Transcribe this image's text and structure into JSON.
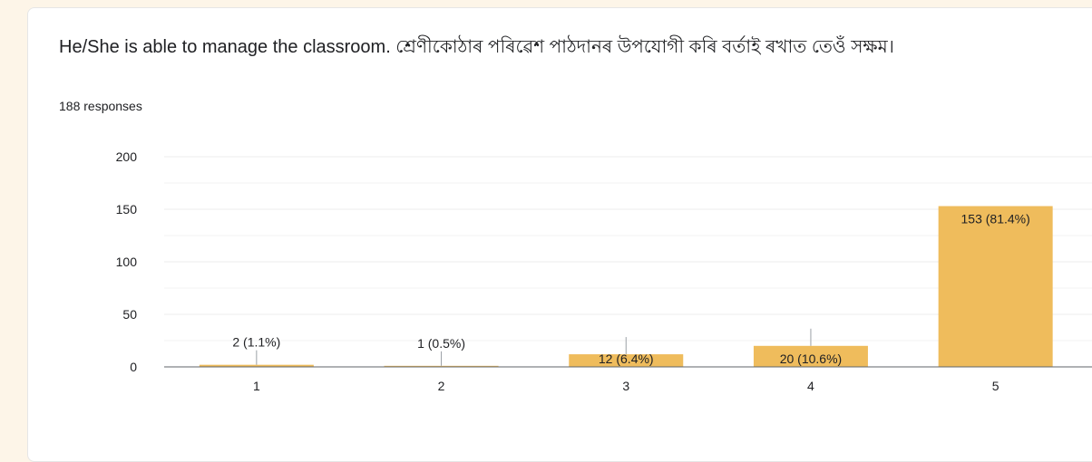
{
  "card": {
    "question_title": "He/She is able to manage the classroom. শ্ৰেণীকোঠাৰ পৰিৱেশ পাঠদানৰ উপযোগী কৰি বৰ্তাই ৰখাত তেওঁ সক্ষম।",
    "response_count": "188 responses"
  },
  "colors": {
    "bar": "#efbc5c",
    "grid": "#ececec",
    "axis": "#5f6368",
    "text": "#202124"
  },
  "chart_data": {
    "type": "bar",
    "title": "",
    "xlabel": "",
    "ylabel": "",
    "categories": [
      "1",
      "2",
      "3",
      "4",
      "5"
    ],
    "values": [
      2,
      1,
      12,
      20,
      153
    ],
    "data_labels": [
      "2 (1.1%)",
      "1 (0.5%)",
      "12 (6.4%)",
      "20 (10.6%)",
      "153 (81.4%)"
    ],
    "ylim": [
      0,
      200
    ],
    "yticks": [
      0,
      50,
      100,
      150,
      200
    ],
    "grid": true,
    "legend": "none"
  }
}
